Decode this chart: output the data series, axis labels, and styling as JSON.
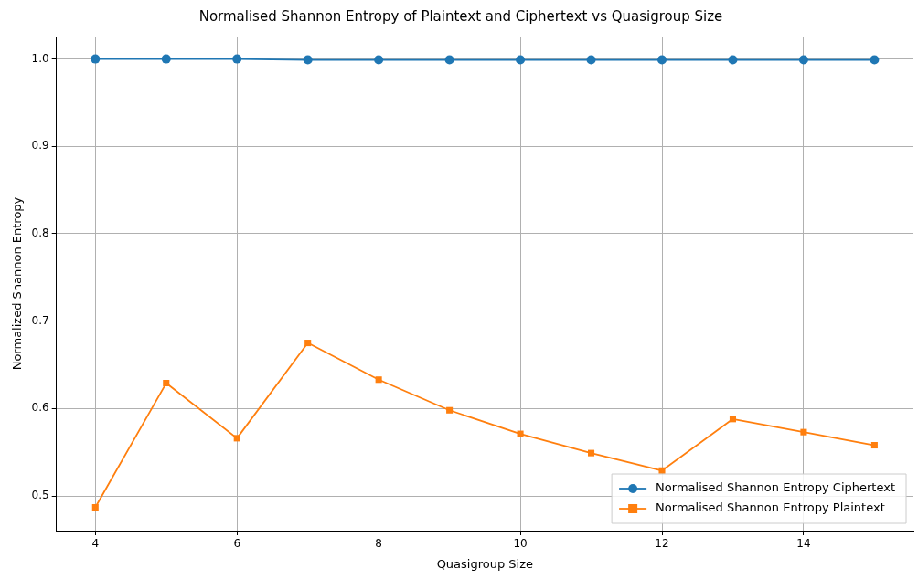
{
  "chart_data": {
    "type": "line",
    "title": "Normalised Shannon Entropy of Plaintext and Ciphertext vs Quasigroup Size",
    "xlabel": "Quasigroup Size",
    "ylabel": "Normalized Shannon Entropy",
    "x": [
      4,
      5,
      6,
      7,
      8,
      9,
      10,
      11,
      12,
      13,
      14,
      15
    ],
    "series": [
      {
        "name": "Normalised Shannon Entropy Ciphertext",
        "color": "#1f77b4",
        "marker": "circle",
        "values": [
          1.0,
          1.0,
          1.0,
          0.999,
          0.999,
          0.999,
          0.999,
          0.999,
          0.999,
          0.999,
          0.999,
          0.999
        ]
      },
      {
        "name": "Normalised Shannon Entropy Plaintext",
        "color": "#ff7f0e",
        "marker": "square",
        "values": [
          0.487,
          0.629,
          0.566,
          0.675,
          0.633,
          0.598,
          0.571,
          0.549,
          0.529,
          0.588,
          0.573,
          0.558
        ]
      }
    ],
    "xlim": [
      3.45,
      15.55
    ],
    "xticks": [
      4,
      6,
      8,
      10,
      12,
      14
    ],
    "ylim": [
      0.4603,
      1.0257
    ],
    "yticks": [
      {
        "value": 0.5,
        "label": "0.5"
      },
      {
        "value": 0.6,
        "label": "0.6"
      },
      {
        "value": 0.7,
        "label": "0.7"
      },
      {
        "value": 0.8,
        "label": "0.8"
      },
      {
        "value": 0.9,
        "label": "0.9"
      },
      {
        "value": 1,
        "label": "1.0"
      }
    ],
    "grid": true,
    "legend": "bottom right",
    "line_style": "solid"
  }
}
